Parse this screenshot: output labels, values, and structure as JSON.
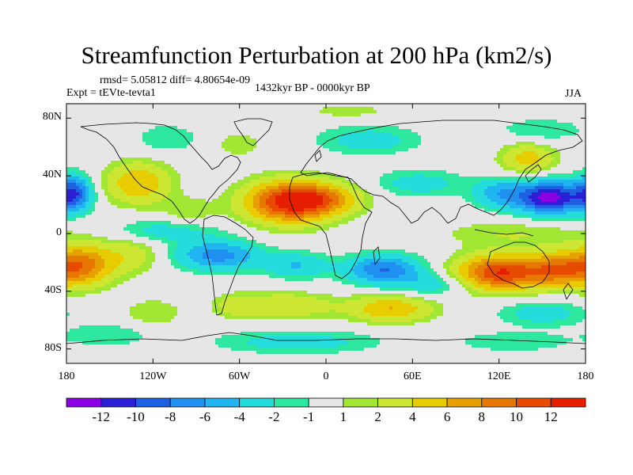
{
  "title": "Streamfunction Perturbation at 200 hPa (km2/s)",
  "stats": "rmsd= 5.05812 diff= 4.80654e-09",
  "experiment": "Expt = tEVte-tevta1",
  "period": "1432kyr BP - 0000kyr BP",
  "season": "JJA",
  "axes": {
    "y_ticks": [
      {
        "label": "80N",
        "lat": 80
      },
      {
        "label": "40N",
        "lat": 40
      },
      {
        "label": "0",
        "lat": 0
      },
      {
        "label": "40S",
        "lat": -40
      },
      {
        "label": "80S",
        "lat": -80
      }
    ],
    "x_ticks": [
      {
        "label": "180",
        "lon": -180
      },
      {
        "label": "120W",
        "lon": -120
      },
      {
        "label": "60W",
        "lon": -60
      },
      {
        "label": "0",
        "lon": 0
      },
      {
        "label": "60E",
        "lon": 60
      },
      {
        "label": "120E",
        "lon": 120
      },
      {
        "label": "180",
        "lon": 180
      }
    ],
    "lon_range": [
      -180,
      180
    ],
    "lat_range": [
      -90,
      90
    ]
  },
  "colorbar": {
    "colors": [
      "#8c00e6",
      "#2b1fd6",
      "#1e60e0",
      "#1f8ff0",
      "#20b4f0",
      "#25dcdc",
      "#2ee8a0",
      "#e6e6e6",
      "#a0e632",
      "#cce632",
      "#e6cc00",
      "#e6a000",
      "#e67800",
      "#e64b00",
      "#e61e00"
    ],
    "labels": [
      "-12",
      "-10",
      "-8",
      "-6",
      "-4",
      "-2",
      "-1",
      "1",
      "2",
      "4",
      "6",
      "8",
      "10",
      "12"
    ]
  },
  "field": {
    "background": 0,
    "anomalies": [
      {
        "lon": -25,
        "lat": 22,
        "rx": 30,
        "ry": 14,
        "amp": 13
      },
      {
        "lon": 0,
        "lat": 24,
        "rx": 25,
        "ry": 10,
        "amp": 5
      },
      {
        "lon": 155,
        "lat": 25,
        "rx": 23,
        "ry": 11,
        "amp": -13
      },
      {
        "lon": 120,
        "lat": 28,
        "rx": 18,
        "ry": 10,
        "amp": -5
      },
      {
        "lon": 65,
        "lat": 35,
        "rx": 30,
        "ry": 9,
        "amp": -3
      },
      {
        "lon": -175,
        "lat": 28,
        "rx": 12,
        "ry": 12,
        "amp": -9
      },
      {
        "lon": -130,
        "lat": 35,
        "rx": 22,
        "ry": 14,
        "amp": 6
      },
      {
        "lon": -95,
        "lat": 15,
        "rx": 18,
        "ry": 10,
        "amp": 2
      },
      {
        "lon": 140,
        "lat": 52,
        "rx": 18,
        "ry": 10,
        "amp": 5
      },
      {
        "lon": 150,
        "lat": 72,
        "rx": 30,
        "ry": 8,
        "amp": -2
      },
      {
        "lon": 30,
        "lat": 65,
        "rx": 35,
        "ry": 10,
        "amp": -3
      },
      {
        "lon": -110,
        "lat": 66,
        "rx": 22,
        "ry": 10,
        "amp": -2
      },
      {
        "lon": -60,
        "lat": 62,
        "rx": 15,
        "ry": 8,
        "amp": 2
      },
      {
        "lon": 15,
        "lat": 85,
        "rx": 25,
        "ry": 4,
        "amp": 2
      },
      {
        "lon": -110,
        "lat": 2,
        "rx": 35,
        "ry": 8,
        "amp": -3
      },
      {
        "lon": 130,
        "lat": 0,
        "rx": 50,
        "ry": 9,
        "amp": 2
      },
      {
        "lon": 120,
        "lat": -27,
        "rx": 28,
        "ry": 12,
        "amp": 12
      },
      {
        "lon": 160,
        "lat": -25,
        "rx": 22,
        "ry": 12,
        "amp": 8
      },
      {
        "lon": -170,
        "lat": -22,
        "rx": 22,
        "ry": 14,
        "amp": 9
      },
      {
        "lon": -135,
        "lat": -15,
        "rx": 20,
        "ry": 12,
        "amp": 3
      },
      {
        "lon": -75,
        "lat": -15,
        "rx": 28,
        "ry": 10,
        "amp": -7
      },
      {
        "lon": -20,
        "lat": -22,
        "rx": 22,
        "ry": 9,
        "amp": -4
      },
      {
        "lon": 40,
        "lat": -25,
        "rx": 25,
        "ry": 10,
        "amp": -8
      },
      {
        "lon": 75,
        "lat": -35,
        "rx": 25,
        "ry": 8,
        "amp": -3
      },
      {
        "lon": -30,
        "lat": -50,
        "rx": 35,
        "ry": 9,
        "amp": 4
      },
      {
        "lon": 45,
        "lat": -52,
        "rx": 28,
        "ry": 9,
        "amp": 6
      },
      {
        "lon": -120,
        "lat": -55,
        "rx": 20,
        "ry": 10,
        "amp": 2
      },
      {
        "lon": -65,
        "lat": -50,
        "rx": 12,
        "ry": 8,
        "amp": 2
      },
      {
        "lon": 150,
        "lat": -55,
        "rx": 30,
        "ry": 9,
        "amp": -3
      },
      {
        "lon": -20,
        "lat": -75,
        "rx": 55,
        "ry": 8,
        "amp": -3
      },
      {
        "lon": -150,
        "lat": -70,
        "rx": 30,
        "ry": 8,
        "amp": -2
      },
      {
        "lon": 130,
        "lat": -75,
        "rx": 40,
        "ry": 7,
        "amp": -2
      }
    ]
  }
}
